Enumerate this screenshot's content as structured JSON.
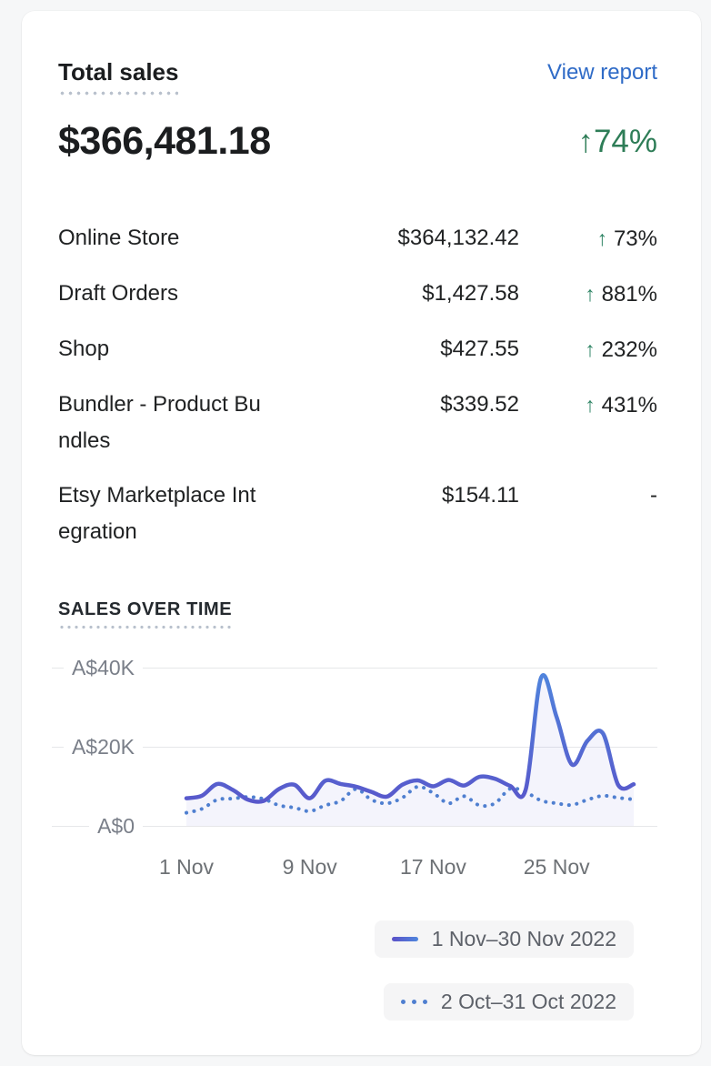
{
  "card": {
    "title": "Total sales",
    "view_report_label": "View report",
    "total_value": "$366,481.18",
    "delta": "↑74%",
    "breakdown": [
      {
        "label": "Online Store",
        "amount": "$364,132.42",
        "change": "73%",
        "direction": "up"
      },
      {
        "label": "Draft Orders",
        "amount": "$1,427.58",
        "change": "881%",
        "direction": "up"
      },
      {
        "label": "Shop",
        "amount": "$427.55",
        "change": "232%",
        "direction": "up"
      },
      {
        "label": "Bundler - Product Bundles",
        "amount": "$339.52",
        "change": "431%",
        "direction": "up"
      },
      {
        "label": "Etsy Marketplace Integration",
        "amount": "$154.11",
        "change": "-",
        "direction": "none"
      }
    ]
  },
  "colors": {
    "link_blue": "#2f6bc7",
    "positive_green": "#2e8464",
    "delta_green": "#2e7d57",
    "grid_line": "#e6e7e9",
    "axis_text": "#6d7175",
    "legend_bg": "#f5f5f6"
  },
  "chart_data": {
    "type": "line",
    "title": "SALES OVER TIME",
    "currency_prefix": "A$",
    "ylim": [
      0,
      40000
    ],
    "grid": true,
    "legend_position": "bottom-right",
    "y_ticks": [
      {
        "label": "A$40K",
        "value": 40000
      },
      {
        "label": "A$20K",
        "value": 20000
      },
      {
        "label": "A$0",
        "value": 0
      }
    ],
    "x_ticks": [
      {
        "label": "1 Nov",
        "day": 1
      },
      {
        "label": "9 Nov",
        "day": 9
      },
      {
        "label": "17 Nov",
        "day": 17
      },
      {
        "label": "25 Nov",
        "day": 25
      }
    ],
    "series": [
      {
        "name": "1 Nov–30 Nov 2022",
        "style": "solid",
        "color_gradient": [
          "#5a50c8",
          "#4f86dd"
        ],
        "fill": "rgba(99,102,214,0.07)",
        "values": [
          7000,
          7600,
          10600,
          9100,
          6600,
          6300,
          9300,
          10400,
          7000,
          11400,
          10600,
          9900,
          8600,
          7400,
          10400,
          11500,
          10000,
          11600,
          10200,
          12400,
          11900,
          10100,
          9200,
          37500,
          27500,
          15500,
          21500,
          23400,
          10300,
          10500
        ]
      },
      {
        "name": "2 Oct–31 Oct 2022",
        "style": "dotted",
        "color": "#4f7fd0",
        "values": [
          3300,
          4300,
          6600,
          6900,
          7300,
          6800,
          5200,
          4600,
          3700,
          5200,
          6300,
          9300,
          6600,
          5700,
          7100,
          9900,
          8300,
          5700,
          7500,
          5200,
          5700,
          9400,
          8500,
          6400,
          5700,
          5300,
          6600,
          7600,
          7100,
          6700
        ]
      }
    ]
  }
}
